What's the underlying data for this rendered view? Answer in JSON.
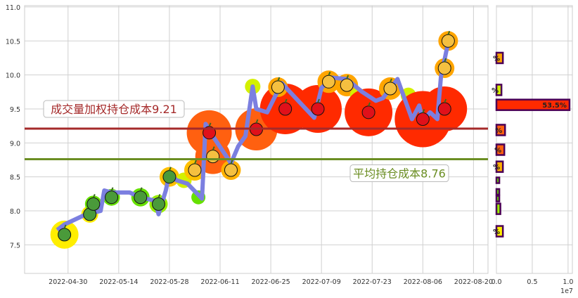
{
  "chart_data": [
    {
      "type": "line",
      "xlim": [
        "2022-04-18",
        "2022-08-24"
      ],
      "ylim": [
        7.08,
        11.02
      ],
      "grid": true,
      "x_ticks": [
        "2022-04-30",
        "2022-05-14",
        "2022-05-28",
        "2022-06-11",
        "2022-06-25",
        "2022-07-09",
        "2022-07-23",
        "2022-08-06",
        "2022-08-20"
      ],
      "y_ticks": [
        "7.5",
        "8.0",
        "8.5",
        "9.0",
        "9.5",
        "10.0",
        "10.5",
        "11.0"
      ],
      "series": [
        {
          "color": "#7b7fe0",
          "points": [
            [
              "2022-04-27",
              7.72
            ],
            [
              "2022-04-29",
              7.8
            ],
            [
              "2022-05-05",
              7.95
            ],
            [
              "2022-05-09",
              8.0
            ],
            [
              "2022-05-10",
              8.3
            ],
            [
              "2022-05-12",
              8.27
            ],
            [
              "2022-05-17",
              8.27
            ],
            [
              "2022-05-20",
              8.2
            ],
            [
              "2022-05-24",
              8.15
            ],
            [
              "2022-05-25",
              7.95
            ],
            [
              "2022-05-27",
              8.3
            ],
            [
              "2022-05-28",
              8.55
            ],
            [
              "2022-05-30",
              8.45
            ],
            [
              "2022-06-02",
              8.4
            ],
            [
              "2022-06-06",
              8.18
            ],
            [
              "2022-06-07",
              9.28
            ],
            [
              "2022-06-09",
              9.1
            ],
            [
              "2022-06-14",
              8.7
            ],
            [
              "2022-06-16",
              8.95
            ],
            [
              "2022-06-18",
              9.1
            ],
            [
              "2022-06-20",
              9.83
            ],
            [
              "2022-06-21",
              9.5
            ],
            [
              "2022-06-24",
              9.45
            ],
            [
              "2022-06-28",
              9.88
            ],
            [
              "2022-07-07",
              9.37
            ],
            [
              "2022-07-09",
              9.81
            ],
            [
              "2022-07-12",
              9.96
            ],
            [
              "2022-07-16",
              9.94
            ],
            [
              "2022-07-20",
              9.76
            ],
            [
              "2022-07-24",
              9.62
            ],
            [
              "2022-07-26",
              9.66
            ],
            [
              "2022-07-30",
              9.94
            ],
            [
              "2022-08-03",
              9.35
            ],
            [
              "2022-08-05",
              9.55
            ],
            [
              "2022-08-06",
              9.33
            ],
            [
              "2022-08-08",
              9.45
            ],
            [
              "2022-08-10",
              9.35
            ],
            [
              "2022-08-11",
              9.97
            ],
            [
              "2022-08-13",
              10.48
            ]
          ]
        }
      ],
      "markers": [
        {
          "date": "2022-04-29",
          "price": 7.65,
          "color": "#ffee00",
          "weight": 2
        },
        {
          "date": "2022-05-06",
          "price": 7.95,
          "color": "#ffee00",
          "weight": 1.2
        },
        {
          "date": "2022-05-07",
          "price": 8.1,
          "color": "#66e000",
          "weight": 1.2
        },
        {
          "date": "2022-05-12",
          "price": 8.2,
          "color": "#66e000",
          "weight": 1.2
        },
        {
          "date": "2022-05-20",
          "price": 8.2,
          "color": "#66e000",
          "weight": 1.3
        },
        {
          "date": "2022-05-25",
          "price": 8.1,
          "color": "#99ee00",
          "weight": 1.3
        },
        {
          "date": "2022-05-28",
          "price": 8.5,
          "color": "#ffc000",
          "weight": 1.4
        },
        {
          "date": "2022-06-01",
          "price": 8.45,
          "color": "#d4f000",
          "weight": 1.1
        },
        {
          "date": "2022-06-05",
          "price": 8.2,
          "color": "#66e000",
          "weight": 1
        },
        {
          "date": "2022-06-04",
          "price": 8.6,
          "color": "#ffc000",
          "weight": 1.5
        },
        {
          "date": "2022-06-08",
          "price": 9.15,
          "color": "#ff6010",
          "weight": 3.2
        },
        {
          "date": "2022-06-09",
          "price": 8.8,
          "color": "#ff6010",
          "weight": 2.5
        },
        {
          "date": "2022-06-14",
          "price": 8.6,
          "color": "#ffb000",
          "weight": 1.4
        },
        {
          "date": "2022-06-20",
          "price": 9.83,
          "color": "#d4f000",
          "weight": 1.1
        },
        {
          "date": "2022-06-21",
          "price": 9.2,
          "color": "#ff6010",
          "weight": 3
        },
        {
          "date": "2022-06-29",
          "price": 9.5,
          "color": "#ff2a00",
          "weight": 3.6
        },
        {
          "date": "2022-06-27",
          "price": 9.82,
          "color": "#ffa500",
          "weight": 1.4
        },
        {
          "date": "2022-07-08",
          "price": 9.5,
          "color": "#ff2a00",
          "weight": 3.4
        },
        {
          "date": "2022-07-11",
          "price": 9.9,
          "color": "#ffa500",
          "weight": 1.6
        },
        {
          "date": "2022-07-16",
          "price": 9.85,
          "color": "#ffa500",
          "weight": 1.6
        },
        {
          "date": "2022-07-19",
          "price": 9.7,
          "color": "#d4f000",
          "weight": 1.1
        },
        {
          "date": "2022-07-22",
          "price": 9.45,
          "color": "#ff2a00",
          "weight": 3.4
        },
        {
          "date": "2022-07-28",
          "price": 9.8,
          "color": "#ffa500",
          "weight": 1.6
        },
        {
          "date": "2022-08-02",
          "price": 9.7,
          "color": "#d4f000",
          "weight": 1.1
        },
        {
          "date": "2022-08-06",
          "price": 9.35,
          "color": "#ff2a00",
          "weight": 4
        },
        {
          "date": "2022-08-12",
          "price": 9.5,
          "color": "#ff2a00",
          "weight": 3.2
        },
        {
          "date": "2022-08-12",
          "price": 10.1,
          "color": "#ffa500",
          "weight": 1.4
        },
        {
          "date": "2022-08-13",
          "price": 10.5,
          "color": "#ffa500",
          "weight": 1.4
        }
      ],
      "hlines": [
        {
          "value": 9.21,
          "label": "成交量加权持仓成本9.21",
          "color": "#a52a2a"
        },
        {
          "value": 8.76,
          "label": "平均持仓成本8.76",
          "color": "#6b8e23"
        }
      ]
    },
    {
      "type": "bar",
      "orientation": "horizontal",
      "xlim": [
        0,
        10600000
      ],
      "x_ticks": [
        "0.0",
        "0.5",
        "1.0"
      ],
      "x_offset_label": "1e7",
      "bars": [
        {
          "price": 10.25,
          "value": 900000,
          "color": "#ffa500",
          "label": "%"
        },
        {
          "price": 9.78,
          "value": 700000,
          "color": "#d4f000",
          "label": "%"
        },
        {
          "price": 9.56,
          "value": 10200000,
          "color": "#ff2a00",
          "label": "53.5%"
        },
        {
          "price": 9.19,
          "value": 1200000,
          "color": "#ff6010",
          "label": "%"
        },
        {
          "price": 8.9,
          "value": 1100000,
          "color": "#ff6010",
          "label": "%"
        },
        {
          "price": 8.65,
          "value": 900000,
          "color": "#ffb000",
          "label": "%"
        },
        {
          "price": 8.45,
          "value": 400000,
          "color": "#66e000",
          "label": ""
        },
        {
          "price": 8.28,
          "value": 400000,
          "color": "#66e000",
          "label": ""
        },
        {
          "price": 8.18,
          "value": 400000,
          "color": "#66e000",
          "label": ""
        },
        {
          "price": 8.03,
          "value": 550000,
          "color": "#99ee00",
          "label": ""
        },
        {
          "price": 7.7,
          "value": 900000,
          "color": "#ffee00",
          "label": "%"
        }
      ],
      "border_color": "#4b0055"
    }
  ]
}
